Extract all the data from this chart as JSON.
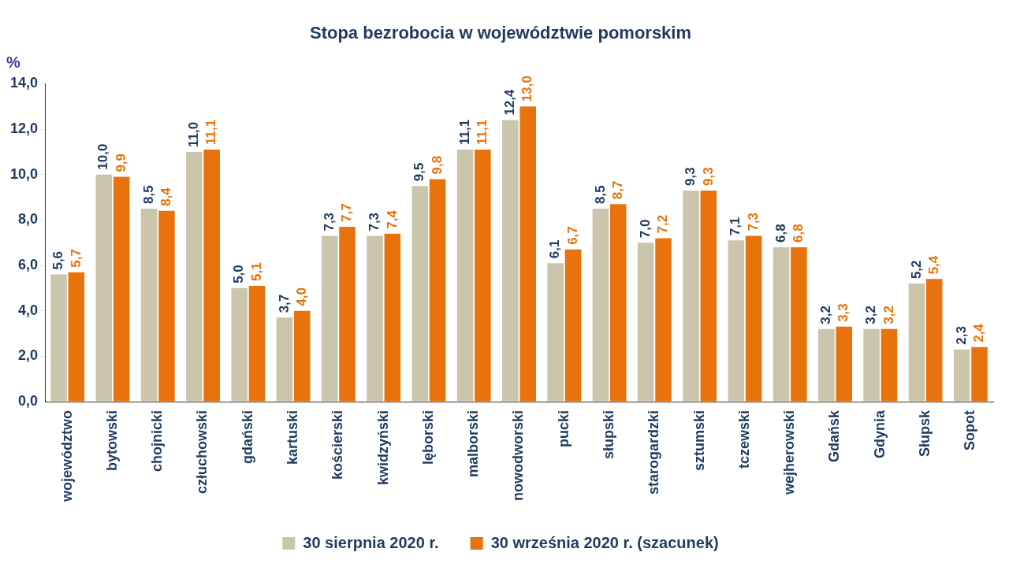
{
  "chart_data": {
    "type": "bar",
    "title": "Stopa bezrobocia w województwie pomorskim",
    "ylabel": "%",
    "categories": [
      "województwo",
      "bytowski",
      "chojnicki",
      "człuchowski",
      "gdański",
      "kartuski",
      "kościerski",
      "kwidzyński",
      "lęborski",
      "malborski",
      "nowodworski",
      "pucki",
      "słupski",
      "starogardzki",
      "sztumski",
      "tczewski",
      "wejherowski",
      "Gdańsk",
      "Gdynia",
      "Słupsk",
      "Sopot"
    ],
    "series": [
      {
        "name": "30 sierpnia 2020 r.",
        "color": "#cbc6ab",
        "values": [
          5.6,
          10.0,
          8.5,
          11.0,
          5.0,
          3.7,
          7.3,
          7.3,
          9.5,
          11.1,
          12.4,
          6.1,
          8.5,
          7.0,
          9.3,
          7.1,
          6.8,
          3.2,
          3.2,
          5.2,
          2.3
        ],
        "value_labels": [
          "5,6",
          "10,0",
          "8,5",
          "11,0",
          "5,0",
          "3,7",
          "7,3",
          "7,3",
          "9,5",
          "11,1",
          "12,4",
          "6,1",
          "8,5",
          "7,0",
          "9,3",
          "7,1",
          "6,8",
          "3,2",
          "3,2",
          "5,2",
          "2,3"
        ]
      },
      {
        "name": "30 września 2020 r. (szacunek)",
        "color": "#e8730c",
        "values": [
          5.7,
          9.9,
          8.4,
          11.1,
          5.1,
          4.0,
          7.7,
          7.4,
          9.8,
          11.1,
          13.0,
          6.7,
          8.7,
          7.2,
          9.3,
          7.3,
          6.8,
          3.3,
          3.2,
          5.4,
          2.4
        ],
        "value_labels": [
          "5,7",
          "9,9",
          "8,4",
          "11,1",
          "5,1",
          "4,0",
          "7,7",
          "7,4",
          "9,8",
          "11,1",
          "13,0",
          "6,7",
          "8,7",
          "7,2",
          "9,3",
          "7,3",
          "6,8",
          "3,3",
          "3,2",
          "5,4",
          "2,4"
        ]
      }
    ],
    "ylim": [
      0,
      14
    ],
    "yticks": [
      {
        "value": 0,
        "label": "0,0"
      },
      {
        "value": 2,
        "label": "2,0"
      },
      {
        "value": 4,
        "label": "4,0"
      },
      {
        "value": 6,
        "label": "6,0"
      },
      {
        "value": 8,
        "label": "8,0"
      },
      {
        "value": 10,
        "label": "10,0"
      },
      {
        "value": 12,
        "label": "12,0"
      },
      {
        "value": 14,
        "label": "14,0"
      }
    ],
    "grid": false,
    "legend": "bottom"
  }
}
